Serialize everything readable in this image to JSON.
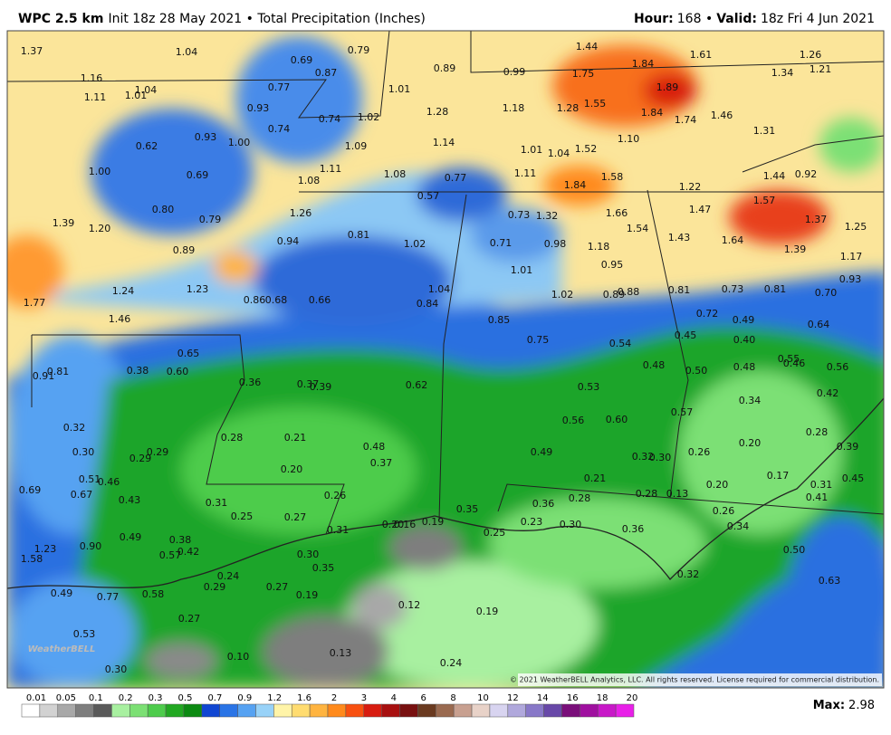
{
  "header": {
    "model": "WPC 2.5 km",
    "init": "Init 18z 28 May 2021 • Total Precipitation (Inches)",
    "hour_label": "Hour:",
    "hour": "168 •",
    "valid_label": "Valid:",
    "valid": "18z Fri 4 Jun 2021"
  },
  "map_labels": [
    "1.37",
    "1.04",
    "0.69",
    "0.79",
    "0.87",
    "0.89",
    "0.99",
    "1.44",
    "1.75",
    "1.84",
    "1.61",
    "1.26",
    "1.34",
    "1.21",
    "1.16",
    "1.11",
    "1.01",
    "1.04",
    "0.77",
    "1.01",
    "1.89",
    "0.93",
    "0.74",
    "1.02",
    "1.28",
    "1.18",
    "1.28",
    "1.55",
    "1.84",
    "1.74",
    "1.46",
    "1.31",
    "0.62",
    "0.93",
    "1.00",
    "0.74",
    "1.09",
    "1.14",
    "1.01",
    "1.04",
    "1.52",
    "1.10",
    "1.00",
    "0.69",
    "1.11",
    "1.08",
    "1.08",
    "0.77",
    "1.11",
    "1.58",
    "1.44",
    "0.92",
    "1.22",
    "0.57",
    "1.84",
    "1.57",
    "0.80",
    "0.79",
    "1.26",
    "0.73",
    "1.32",
    "1.66",
    "1.47",
    "1.37",
    "1.25",
    "1.39",
    "1.20",
    "0.94",
    "0.81",
    "1.02",
    "0.71",
    "0.98",
    "1.18",
    "1.54",
    "1.43",
    "1.64",
    "1.39",
    "0.89",
    "1.17",
    "0.95",
    "1.01",
    "0.93",
    "1.24",
    "1.23",
    "0.86",
    "0.68",
    "0.66",
    "1.04",
    "0.84",
    "1.02",
    "0.89",
    "0.88",
    "0.81",
    "0.73",
    "0.81",
    "0.70",
    "1.77",
    "1.46",
    "0.85",
    "0.72",
    "0.49",
    "0.64",
    "0.75",
    "0.54",
    "0.45",
    "0.40",
    "0.65",
    "0.55",
    "0.46",
    "0.91",
    "0.81",
    "0.38",
    "0.60",
    "0.48",
    "0.50",
    "0.48",
    "0.56",
    "0.36",
    "0.37",
    "0.39",
    "0.62",
    "0.53",
    "0.42",
    "0.34",
    "0.57",
    "0.56",
    "0.60",
    "0.32",
    "0.28",
    "0.28",
    "0.21",
    "0.48",
    "0.30",
    "0.29",
    "0.29",
    "0.49",
    "0.26",
    "0.20",
    "0.39",
    "0.32",
    "0.30",
    "0.37",
    "0.20",
    "0.17",
    "0.21",
    "0.51",
    "0.46",
    "0.31",
    "0.45",
    "0.69",
    "0.67",
    "0.26",
    "0.28",
    "0.13",
    "0.20",
    "0.41",
    "0.28",
    "0.36",
    "0.43",
    "0.31",
    "0.25",
    "0.27",
    "0.35",
    "0.26",
    "0.23",
    "0.16",
    "0.19",
    "0.20",
    "0.25",
    "0.31",
    "0.34",
    "0.30",
    "0.36",
    "0.49",
    "0.38",
    "0.90",
    "1.23",
    "1.58",
    "0.42",
    "0.57",
    "0.30",
    "0.35",
    "0.50",
    "0.32",
    "0.24",
    "0.29",
    "0.27",
    "0.63",
    "0.49",
    "0.77",
    "0.58",
    "0.19",
    "0.12",
    "0.19",
    "0.27",
    "0.53",
    "0.10",
    "0.13",
    "0.24",
    "0.30"
  ],
  "logo": "WeatherBELL",
  "copyright": "© 2021 WeatherBELL Analytics, LLC. All rights reserved. License required for commercial distribution.",
  "colorbar": {
    "labels": [
      "0.01",
      "0.05",
      "0.1",
      "0.2",
      "0.3",
      "0.5",
      "0.7",
      "0.9",
      "1.2",
      "1.6",
      "2",
      "3",
      "4",
      "6",
      "8",
      "10",
      "12",
      "14",
      "16",
      "18",
      "20"
    ],
    "colors": [
      "#ffffff",
      "#d2d2d2",
      "#a8a8a8",
      "#7e7e7e",
      "#5a5a5a",
      "#a8f0a0",
      "#7ce074",
      "#4ecc4c",
      "#22a822",
      "#0c8a12",
      "#1046d2",
      "#2a74e6",
      "#56a2f2",
      "#98d2f8",
      "#fff4a8",
      "#ffdc70",
      "#ffb440",
      "#ff8a1c",
      "#f85010",
      "#d81c10",
      "#a81010",
      "#781010",
      "#6a3a20",
      "#9a6a50",
      "#c8a090",
      "#e8d2c8",
      "#d8d4f0",
      "#b0a8dc",
      "#8878c8",
      "#6848a8",
      "#7a0e7a",
      "#a010a0",
      "#c818c8",
      "#e820e8"
    ]
  },
  "max_label": "Max:",
  "max_value": "2.98"
}
